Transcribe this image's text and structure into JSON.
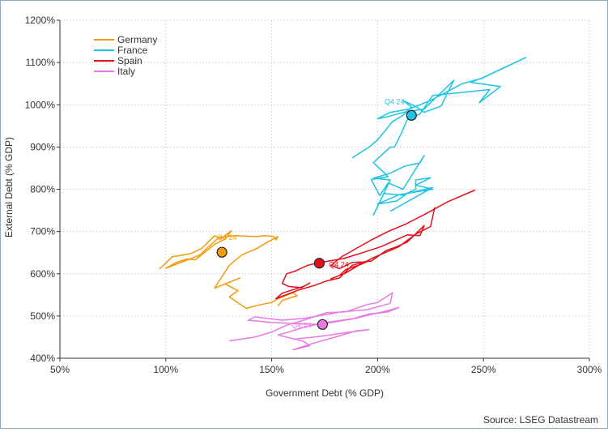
{
  "chart_data": {
    "type": "line",
    "xlabel": "Government Debt (% GDP)",
    "ylabel": "External Debt (% GDP)",
    "source": "Source: LSEG Datastream",
    "xlim": [
      50,
      300
    ],
    "ylim": [
      400,
      1200
    ],
    "x_ticks": [
      50,
      100,
      150,
      200,
      250,
      300
    ],
    "y_ticks": [
      400,
      500,
      600,
      700,
      800,
      900,
      1000,
      1100,
      1200
    ],
    "x_tick_labels": [
      "50%",
      "100%",
      "150%",
      "200%",
      "250%",
      "300%"
    ],
    "y_tick_labels": [
      "400%",
      "500%",
      "600%",
      "700%",
      "800%",
      "900%",
      "1000%",
      "1100%",
      "1200%"
    ],
    "grid": true,
    "legend_position": "top-left",
    "series": [
      {
        "name": "Germany",
        "color": "#f29b0c",
        "end_label": "Q4 24",
        "end_point": [
          126.5,
          651
        ],
        "points": [
          [
            97,
            611
          ],
          [
            103,
            640
          ],
          [
            112,
            648
          ],
          [
            117,
            660
          ],
          [
            123,
            690
          ],
          [
            126,
            683
          ],
          [
            131,
            702
          ],
          [
            128,
            682
          ],
          [
            123,
            670
          ],
          [
            119,
            653
          ],
          [
            114,
            633
          ],
          [
            110,
            635
          ],
          [
            105,
            627
          ],
          [
            100,
            613
          ],
          [
            116,
            644
          ],
          [
            125,
            686
          ],
          [
            133,
            690
          ],
          [
            143,
            688
          ],
          [
            147,
            690
          ],
          [
            151,
            688
          ],
          [
            152,
            680
          ],
          [
            153,
            688
          ],
          [
            148,
            675
          ],
          [
            143,
            660
          ],
          [
            136,
            645
          ],
          [
            130,
            620
          ],
          [
            123,
            566
          ],
          [
            130,
            580
          ],
          [
            135,
            590
          ],
          [
            128,
            576
          ],
          [
            134,
            560
          ],
          [
            130,
            545
          ],
          [
            138,
            518
          ],
          [
            143,
            525
          ],
          [
            150,
            532
          ],
          [
            153,
            541
          ],
          [
            160,
            555
          ],
          [
            162,
            548
          ],
          [
            155,
            537
          ],
          [
            153,
            524
          ]
        ]
      },
      {
        "name": "France",
        "color": "#1ec4e4",
        "end_label": "Q4 24",
        "end_point": [
          216,
          975
        ],
        "points": [
          [
            188,
            874
          ],
          [
            196,
            900
          ],
          [
            200,
            917
          ],
          [
            203,
            935
          ],
          [
            207,
            960
          ],
          [
            212,
            975
          ],
          [
            216,
            995
          ],
          [
            212,
            1010
          ],
          [
            218,
            996
          ],
          [
            222,
            982
          ],
          [
            230,
            997
          ],
          [
            236,
            1058
          ],
          [
            222,
            990
          ],
          [
            213,
            983
          ],
          [
            205,
            972
          ],
          [
            200,
            967
          ],
          [
            206,
            982
          ],
          [
            215,
            990
          ],
          [
            225,
            1010
          ],
          [
            240,
            1050
          ],
          [
            249,
            1062
          ],
          [
            270,
            1112
          ],
          [
            250,
            1065
          ],
          [
            244,
            1053
          ],
          [
            258,
            1043
          ],
          [
            248,
            1005
          ],
          [
            253,
            1036
          ],
          [
            226,
            1022
          ],
          [
            220,
            978
          ],
          [
            214,
            965
          ],
          [
            211,
            930
          ],
          [
            208,
            900
          ],
          [
            206,
            900
          ],
          [
            198,
            863
          ],
          [
            205,
            830
          ],
          [
            197,
            823
          ],
          [
            201,
            785
          ],
          [
            205,
            815
          ],
          [
            212,
            800
          ],
          [
            222,
            880
          ],
          [
            220,
            862
          ],
          [
            213,
            855
          ],
          [
            206,
            838
          ],
          [
            198,
            826
          ],
          [
            206,
            822
          ],
          [
            198,
            739
          ],
          [
            203,
            790
          ],
          [
            212,
            786
          ],
          [
            218,
            800
          ],
          [
            218,
            822
          ],
          [
            225,
            827
          ],
          [
            218,
            810
          ],
          [
            226,
            800
          ],
          [
            210,
            787
          ],
          [
            200,
            765
          ],
          [
            209,
            772
          ],
          [
            214,
            790
          ],
          [
            226,
            804
          ],
          [
            206,
            748
          ]
        ]
      },
      {
        "name": "Spain",
        "color": "#e3101b",
        "end_label": "Q4 24",
        "end_point": [
          172.5,
          625
        ],
        "points": [
          [
            246,
            798
          ],
          [
            233,
            770
          ],
          [
            222,
            740
          ],
          [
            213,
            717
          ],
          [
            205,
            700
          ],
          [
            197,
            680
          ],
          [
            190,
            660
          ],
          [
            183,
            640
          ],
          [
            178,
            620
          ],
          [
            182,
            612
          ],
          [
            188,
            627
          ],
          [
            193,
            628
          ],
          [
            197,
            630
          ],
          [
            204,
            655
          ],
          [
            208,
            662
          ],
          [
            214,
            675
          ],
          [
            222,
            714
          ],
          [
            220,
            690
          ],
          [
            214,
            692
          ],
          [
            202,
            665
          ],
          [
            193,
            650
          ],
          [
            184,
            636
          ],
          [
            172,
            626
          ],
          [
            167,
            620
          ],
          [
            161,
            606
          ],
          [
            157,
            600
          ],
          [
            155,
            577
          ],
          [
            158,
            570
          ],
          [
            164,
            567
          ],
          [
            168,
            578
          ],
          [
            165,
            570
          ],
          [
            155,
            554
          ],
          [
            152,
            541
          ],
          [
            163,
            562
          ],
          [
            170,
            572
          ],
          [
            176,
            583
          ],
          [
            182,
            590
          ],
          [
            188,
            620
          ],
          [
            196,
            631
          ],
          [
            192,
            622
          ],
          [
            185,
            610
          ],
          [
            182,
            596
          ],
          [
            178,
            588
          ],
          [
            185,
            602
          ],
          [
            191,
            620
          ],
          [
            198,
            638
          ],
          [
            210,
            664
          ],
          [
            218,
            694
          ],
          [
            225,
            712
          ],
          [
            227,
            757
          ]
        ]
      },
      {
        "name": "Italy",
        "color": "#e87be2",
        "end_label": "Q4 24",
        "end_point": [
          174,
          480
        ],
        "points": [
          [
            130,
            441
          ],
          [
            142,
            450
          ],
          [
            150,
            462
          ],
          [
            157,
            478
          ],
          [
            165,
            490
          ],
          [
            176,
            508
          ],
          [
            185,
            510
          ],
          [
            195,
            527
          ],
          [
            200,
            532
          ],
          [
            207,
            555
          ],
          [
            206,
            530
          ],
          [
            195,
            515
          ],
          [
            183,
            510
          ],
          [
            166,
            495
          ],
          [
            155,
            490
          ],
          [
            142,
            498
          ],
          [
            139,
            490
          ],
          [
            150,
            485
          ],
          [
            160,
            482
          ],
          [
            173,
            480
          ],
          [
            188,
            493
          ],
          [
            196,
            505
          ],
          [
            200,
            507
          ],
          [
            205,
            513
          ],
          [
            210,
            520
          ],
          [
            205,
            510
          ],
          [
            198,
            505
          ],
          [
            190,
            495
          ],
          [
            176,
            485
          ],
          [
            165,
            473
          ],
          [
            158,
            462
          ],
          [
            153,
            455
          ],
          [
            165,
            440
          ],
          [
            168,
            430
          ],
          [
            160,
            420
          ],
          [
            170,
            436
          ],
          [
            180,
            450
          ],
          [
            190,
            465
          ],
          [
            196,
            468
          ],
          [
            184,
            460
          ],
          [
            178,
            455
          ],
          [
            170,
            450
          ],
          [
            160,
            445
          ]
        ]
      }
    ]
  }
}
